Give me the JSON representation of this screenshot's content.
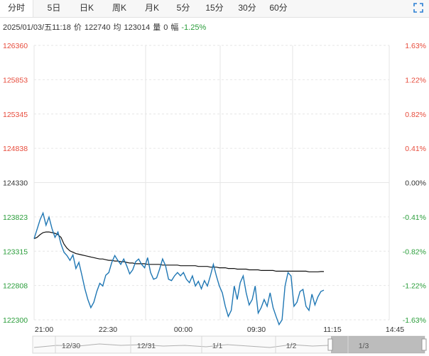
{
  "tabs": [
    {
      "label": "分时",
      "active": true
    },
    {
      "label": "5日"
    },
    {
      "label": "日K"
    },
    {
      "label": "周K"
    },
    {
      "label": "月K"
    },
    {
      "label": "5分"
    },
    {
      "label": "15分"
    },
    {
      "label": "30分"
    },
    {
      "label": "60分"
    }
  ],
  "expand_icon": "fullscreen-icon",
  "info": {
    "datetime": "2025/01/03/五11:18",
    "price_label": "价",
    "price": "122740",
    "avg_label": "均",
    "avg": "123014",
    "vol_label": "量",
    "vol": "0",
    "change_label": "幅",
    "change": "-1.25%"
  },
  "colors": {
    "up": "#e74c3c",
    "down": "#2a9d3a",
    "neutral": "#333333",
    "price_line": "#1f77b4",
    "avg_line": "#111111"
  },
  "chart_data": {
    "type": "line",
    "y_ticks": [
      "126360",
      "125853",
      "125345",
      "124838",
      "124330",
      "123823",
      "123315",
      "122808",
      "122300"
    ],
    "pct_ticks": [
      "1.63%",
      "1.22%",
      "0.82%",
      "0.41%",
      "0.00%",
      "-0.41%",
      "-0.82%",
      "-1.22%",
      "-1.63%"
    ],
    "ylim": [
      122300,
      126360
    ],
    "base": 124330,
    "x_labels": [
      "21:00",
      "22:30",
      "00:00",
      "09:30",
      "11:15",
      "14:45"
    ],
    "navigator_labels": [
      "12/30",
      "12/31",
      "1/1",
      "1/2",
      "1/3"
    ],
    "series": [
      {
        "name": "price",
        "values": [
          123500,
          123640,
          123780,
          123880,
          123700,
          123820,
          123650,
          123520,
          123600,
          123420,
          123300,
          123250,
          123180,
          123260,
          123060,
          123150,
          122960,
          122760,
          122600,
          122480,
          122560,
          122720,
          122840,
          122800,
          122960,
          123000,
          123150,
          123250,
          123180,
          123120,
          123200,
          123100,
          122980,
          123040,
          123160,
          123200,
          123120,
          123070,
          123220,
          123000,
          122900,
          122920,
          123050,
          123200,
          123100,
          122900,
          122880,
          122950,
          123000,
          122950,
          123000,
          122900,
          122850,
          122950,
          122800,
          122870,
          122760,
          122880,
          122800,
          122950,
          123120,
          122950,
          122800,
          122700,
          122500,
          122350,
          122440,
          122800,
          122600,
          122850,
          122950,
          122700,
          122520,
          122600,
          122800,
          122400,
          122480,
          122600,
          122500,
          122700,
          122480,
          122350,
          122230,
          122300,
          122800,
          123000,
          122950,
          122500,
          122560,
          122720,
          122750,
          122500,
          122440,
          122680,
          122520,
          122640,
          122720,
          122740
        ]
      },
      {
        "name": "avg",
        "values": [
          123500,
          123520,
          123560,
          123590,
          123600,
          123600,
          123590,
          123580,
          123560,
          123520,
          123420,
          123360,
          123320,
          123300,
          123280,
          123270,
          123260,
          123250,
          123240,
          123230,
          123220,
          123210,
          123200,
          123200,
          123190,
          123180,
          123180,
          123170,
          123170,
          123160,
          123160,
          123150,
          123140,
          123140,
          123130,
          123130,
          123130,
          123130,
          123120,
          123120,
          123120,
          123120,
          123120,
          123110,
          123110,
          123110,
          123110,
          123110,
          123110,
          123100,
          123100,
          123100,
          123100,
          123100,
          123100,
          123090,
          123090,
          123090,
          123090,
          123080,
          123080,
          123080,
          123070,
          123070,
          123070,
          123060,
          123060,
          123060,
          123050,
          123050,
          123050,
          123050,
          123040,
          123040,
          123040,
          123040,
          123030,
          123030,
          123030,
          123030,
          123030,
          123020,
          123020,
          123020,
          123020,
          123020,
          123020,
          123020,
          123020,
          123020,
          123020,
          123020,
          123010,
          123010,
          123010,
          123010,
          123014,
          123014
        ]
      }
    ],
    "grid": true
  }
}
